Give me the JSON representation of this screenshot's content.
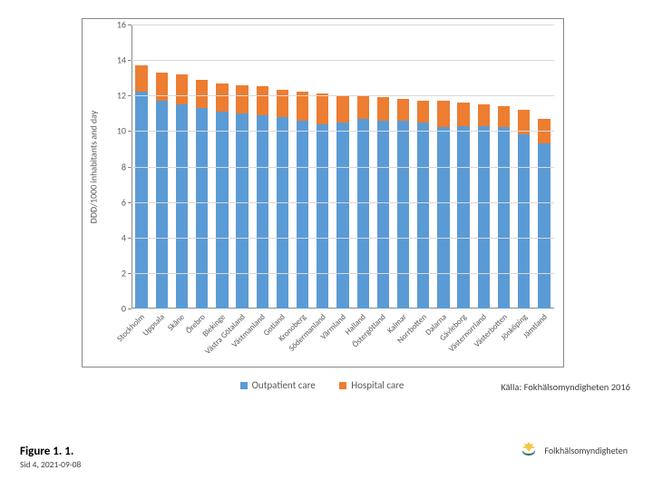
{
  "chart": {
    "type": "stacked-bar",
    "background_color": "#ffffff",
    "border_color": "#888888",
    "grid_color": "#d9d9d9",
    "axis_color": "#888888",
    "tick_label_color": "#595959",
    "tick_fontsize": 10,
    "xlabel_fontsize": 9,
    "y_axis": {
      "title": "DDD/1000 inhabitants and day",
      "title_fontsize": 10,
      "lim": [
        0,
        16
      ],
      "tick_step": 2
    },
    "series": [
      {
        "key": "outpatient",
        "label": "Outpatient care",
        "color": "#5b9bd5"
      },
      {
        "key": "hospital",
        "label": "Hospital care",
        "color": "#ed7d31"
      }
    ],
    "categories": [
      "Stockholm",
      "Uppsala",
      "Skåne",
      "Örebro",
      "Blekinge",
      "Västra Götaland",
      "Västmanland",
      "Gotland",
      "Kronoberg",
      "Södermanland",
      "Värmland",
      "Halland",
      "Östergötland",
      "Kalmar",
      "Norrbotten",
      "Dalarna",
      "Gävleborg",
      "Västernorrland",
      "Västerbotten",
      "Jönköping",
      "Jämtland"
    ],
    "values": {
      "outpatient": [
        12.2,
        11.7,
        11.5,
        11.3,
        11.1,
        11.0,
        10.9,
        10.8,
        10.6,
        10.4,
        10.5,
        10.7,
        10.6,
        10.6,
        10.5,
        10.2,
        10.3,
        10.3,
        10.2,
        9.8,
        9.3
      ],
      "hospital": [
        1.5,
        1.6,
        1.7,
        1.6,
        1.6,
        1.6,
        1.6,
        1.5,
        1.6,
        1.7,
        1.5,
        1.3,
        1.3,
        1.2,
        1.2,
        1.5,
        1.3,
        1.2,
        1.2,
        1.4,
        1.4
      ]
    },
    "bar_width_ratio": 0.6
  },
  "legend": {
    "items": [
      {
        "label": "Outpatient care",
        "color": "#5b9bd5"
      },
      {
        "label": "Hospital care",
        "color": "#ed7d31"
      }
    ],
    "fontsize": 11
  },
  "source_note": "Källa: Fokhälsomyndigheten 2016",
  "figure": {
    "label": "Figure 1. 1.",
    "subline": "Sid  4, 2021-09-08"
  },
  "agency": {
    "name": "Folkhälsomyndigheten",
    "crown_color": "#f2c94c",
    "wreath_color": "#2d6a4f"
  }
}
